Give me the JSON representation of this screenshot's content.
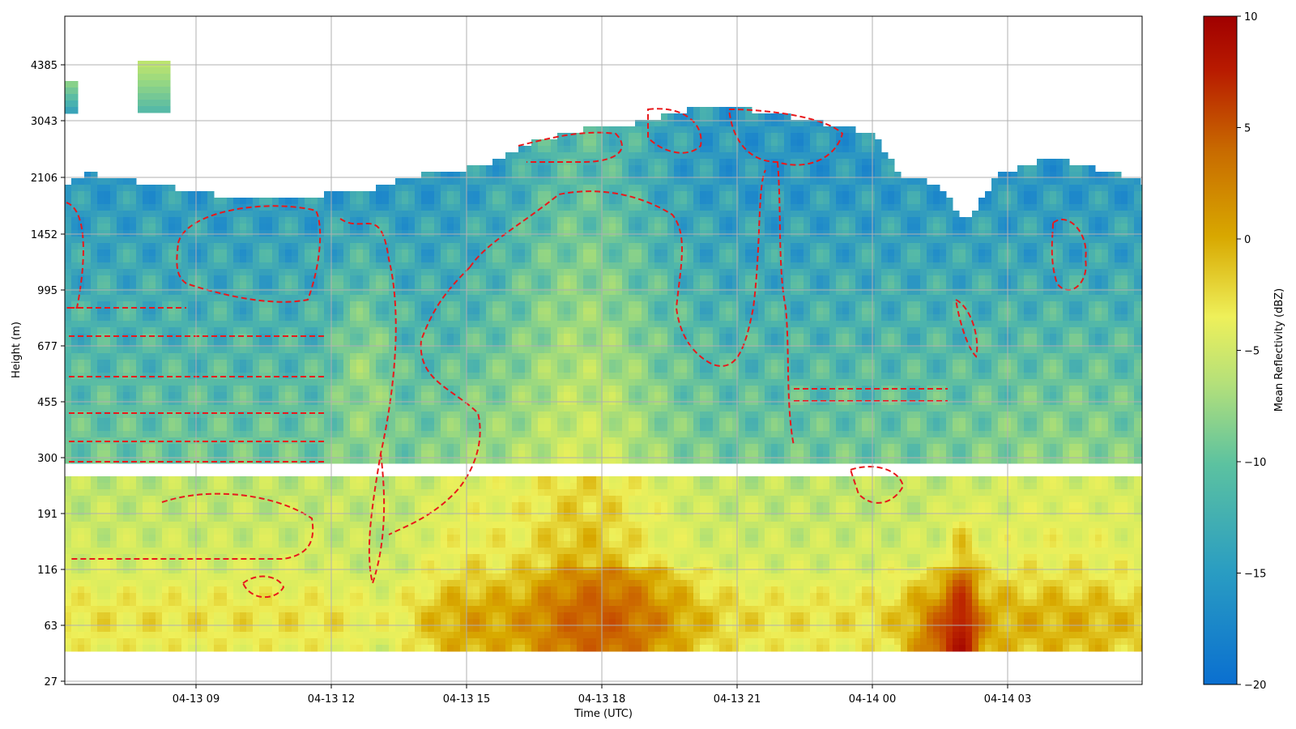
{
  "chart_data": {
    "type": "heatmap",
    "title": "",
    "xlabel": "Time (UTC)",
    "ylabel": "Height (m)",
    "x_ticks": [
      "04-13 09",
      "04-13 12",
      "04-13 15",
      "04-13 18",
      "04-13 21",
      "04-14 00",
      "04-14 03"
    ],
    "y_ticks": [
      "27",
      "63",
      "116",
      "191",
      "300",
      "455",
      "677",
      "995",
      "1452",
      "2106",
      "3043",
      "4385"
    ],
    "x_range_hours": [
      6.0,
      29.8
    ],
    "colorbar": {
      "label": "Mean Reflectivity (dBZ)",
      "min": -20,
      "max": 10,
      "ticks": [
        "10",
        "5",
        "0",
        "−5",
        "−10",
        "−15",
        "−20"
      ]
    },
    "contour_color": "#e8191c",
    "grid": true,
    "colors": {
      "low": "#1f78c4",
      "mid": "#4fb8a6",
      "high_mid": "#e9ef5a",
      "high": "#cc7a00",
      "max": "#a50000"
    }
  }
}
